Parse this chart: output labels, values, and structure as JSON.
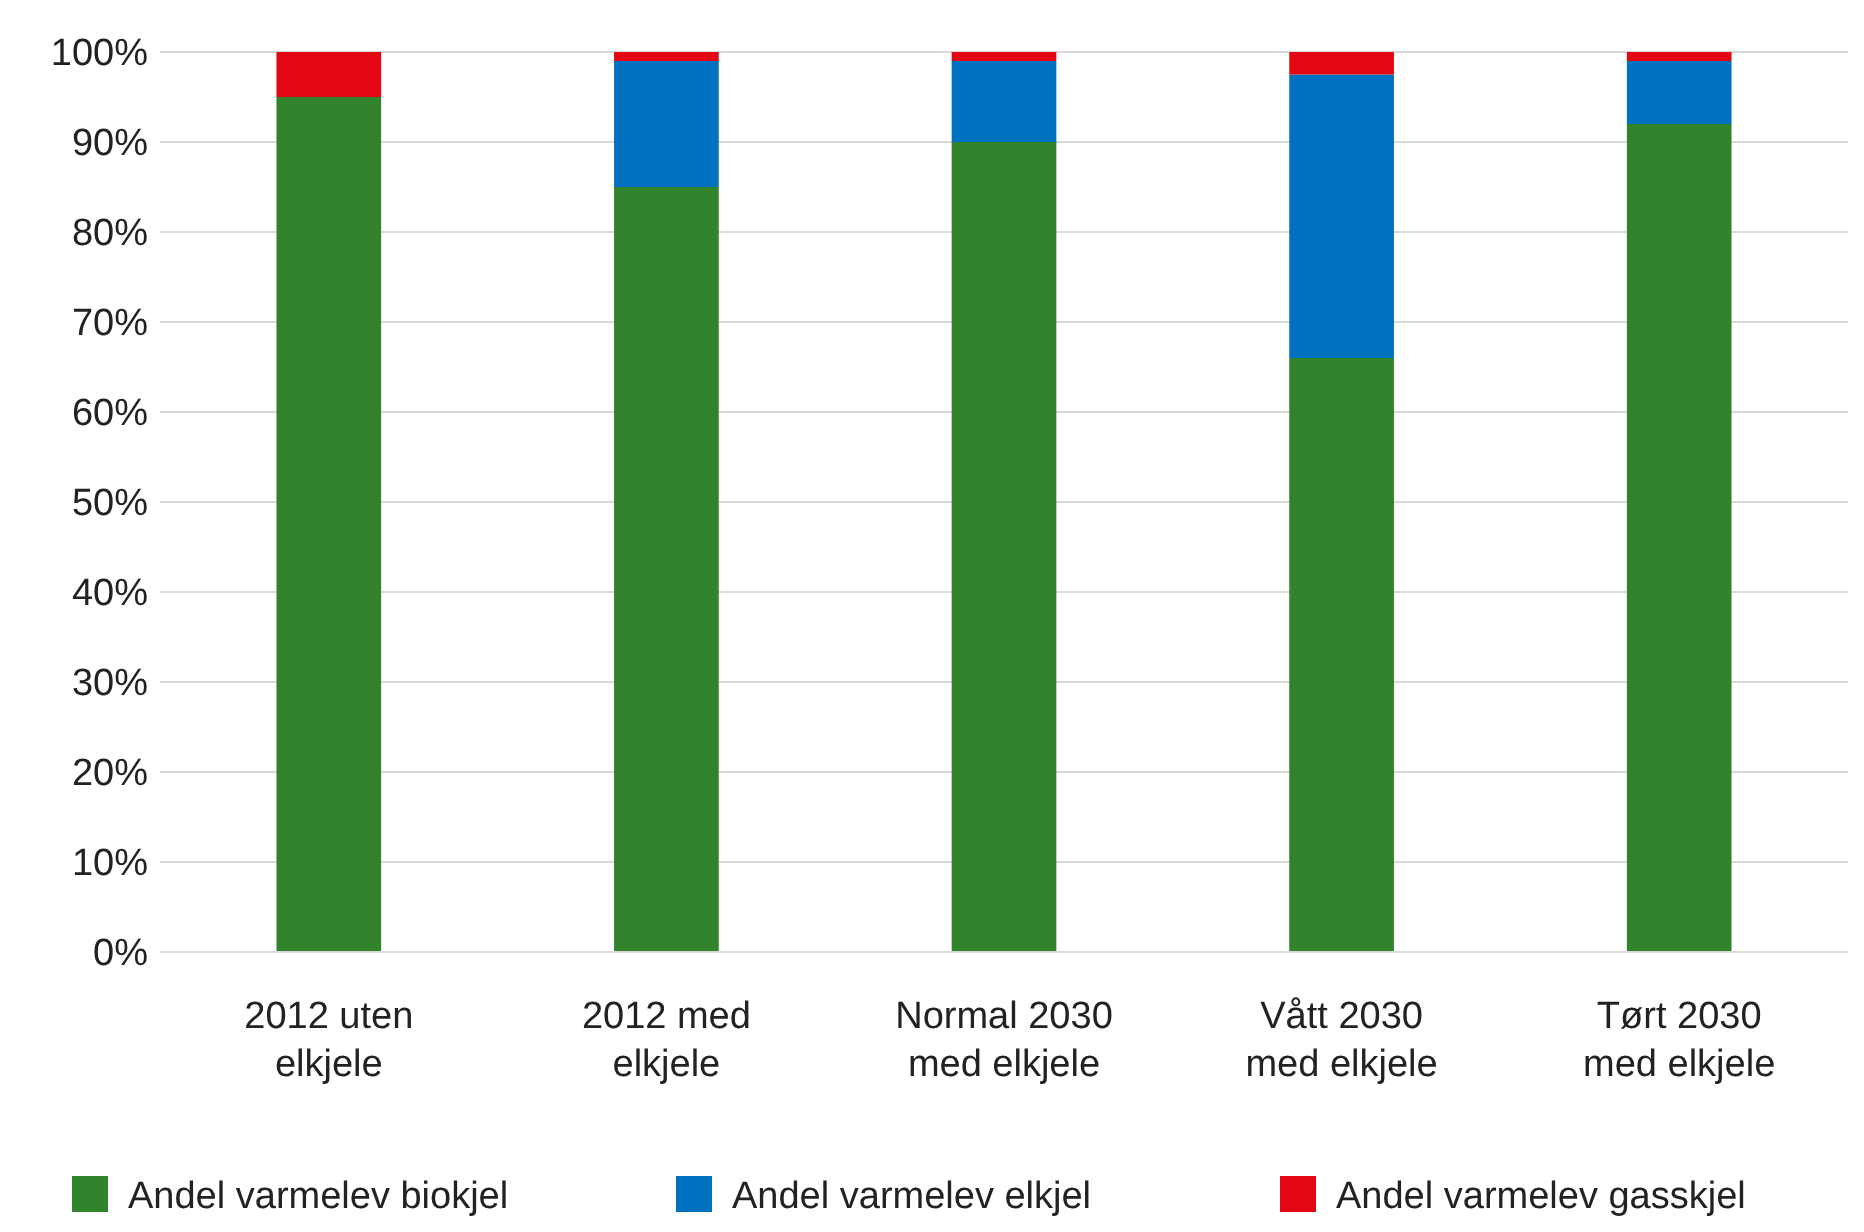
{
  "chart_data": {
    "type": "bar",
    "stacked": true,
    "categories": [
      "2012 uten elkjele",
      "2012 med elkjele",
      "Normal 2030 med elkjele",
      "Vått 2030 med elkjele",
      "Tørt 2030 med elkjele"
    ],
    "series": [
      {
        "name": "Andel varmelev biokjel",
        "color": "#31832c",
        "values": [
          95,
          85,
          90,
          66,
          92
        ]
      },
      {
        "name": "Andel varmelev elkjel",
        "color": "#0070c0",
        "values": [
          0,
          14,
          9,
          31.5,
          7
        ]
      },
      {
        "name": "Andel varmelev gasskjel",
        "color": "#e30613",
        "values": [
          5,
          1,
          1,
          2.5,
          1
        ]
      }
    ],
    "ylim": [
      0,
      100
    ],
    "yticks": [
      {
        "value": 0,
        "label": "0%"
      },
      {
        "value": 10,
        "label": "10%"
      },
      {
        "value": 20,
        "label": "20%"
      },
      {
        "value": 30,
        "label": "30%"
      },
      {
        "value": 40,
        "label": "40%"
      },
      {
        "value": 50,
        "label": "50%"
      },
      {
        "value": 60,
        "label": "60%"
      },
      {
        "value": 70,
        "label": "70%"
      },
      {
        "value": 80,
        "label": "80%"
      },
      {
        "value": 90,
        "label": "90%"
      },
      {
        "value": 100,
        "label": "100%"
      }
    ],
    "grid": "y",
    "legend": "bottom"
  }
}
